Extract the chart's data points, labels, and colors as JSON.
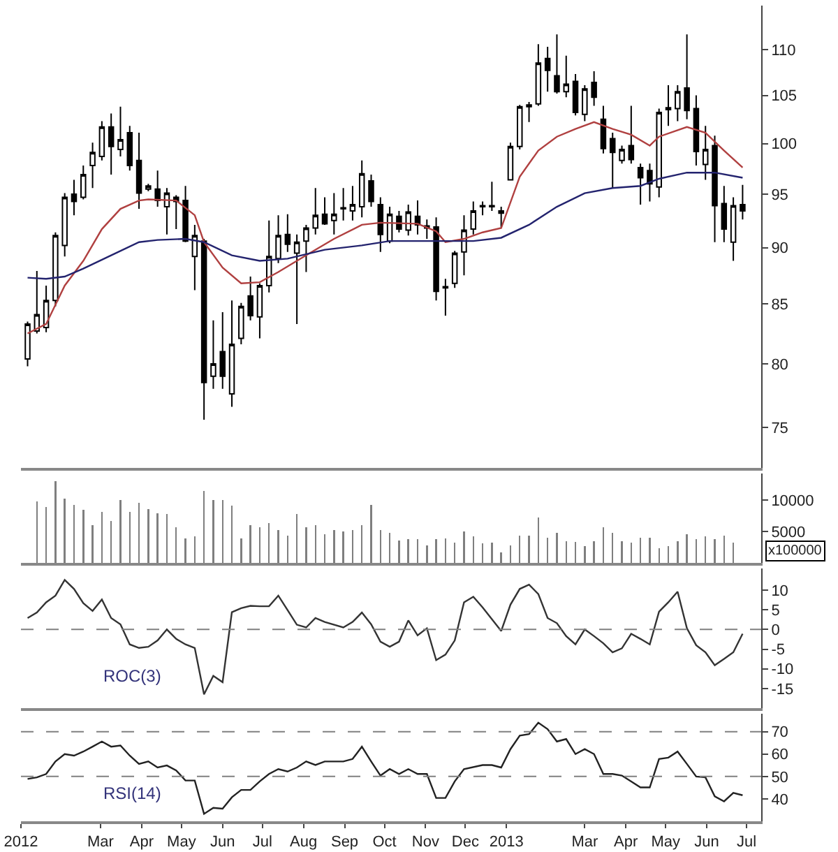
{
  "chart_data": [
    {
      "type": "candlestick",
      "log": true,
      "tick_labels": "y",
      "xlim": [
        "2012-01-01",
        "2013-07-12"
      ],
      "ylim": [
        72,
        115
      ],
      "yticks": [
        75,
        80,
        85,
        90,
        95,
        100,
        105,
        110
      ],
      "x": [
        "2012-01-06",
        "2012-01-13",
        "2012-01-20",
        "2012-01-27",
        "2012-02-03",
        "2012-02-10",
        "2012-02-17",
        "2012-02-24",
        "2012-03-02",
        "2012-03-09",
        "2012-03-16",
        "2012-03-23",
        "2012-03-30",
        "2012-04-06",
        "2012-04-13",
        "2012-04-20",
        "2012-04-27",
        "2012-05-04",
        "2012-05-11",
        "2012-05-18",
        "2012-05-25",
        "2012-06-01",
        "2012-06-08",
        "2012-06-15",
        "2012-06-22",
        "2012-06-29",
        "2012-07-06",
        "2012-07-13",
        "2012-07-20",
        "2012-07-27",
        "2012-08-03",
        "2012-08-10",
        "2012-08-17",
        "2012-08-24",
        "2012-08-31",
        "2012-09-07",
        "2012-09-14",
        "2012-09-21",
        "2012-09-28",
        "2012-10-05",
        "2012-10-12",
        "2012-10-19",
        "2012-10-26",
        "2012-11-02",
        "2012-11-09",
        "2012-11-16",
        "2012-11-23",
        "2012-11-30",
        "2012-12-07",
        "2012-12-14",
        "2012-12-21",
        "2012-12-28",
        "2013-01-04",
        "2013-01-11",
        "2013-01-18",
        "2013-01-25",
        "2013-02-01",
        "2013-02-08",
        "2013-02-15",
        "2013-02-22",
        "2013-03-01",
        "2013-03-08",
        "2013-03-15",
        "2013-03-22",
        "2013-03-29",
        "2013-04-05",
        "2013-04-12",
        "2013-04-19",
        "2013-04-26",
        "2013-05-03",
        "2013-05-10",
        "2013-05-17",
        "2013-05-24",
        "2013-05-31",
        "2013-06-07",
        "2013-06-14",
        "2013-06-21",
        "2013-06-28"
      ],
      "ohlc": [
        [
          80.4,
          83.5,
          79.8,
          83.3
        ],
        [
          82.7,
          87.9,
          82.5,
          84.1
        ],
        [
          83.0,
          86.6,
          82.6,
          85.3
        ],
        [
          85.3,
          91.4,
          84.8,
          91.1
        ],
        [
          90.2,
          95.1,
          89.2,
          94.7
        ],
        [
          95.0,
          96.4,
          93.0,
          94.3
        ],
        [
          94.7,
          97.8,
          94.5,
          96.9
        ],
        [
          97.8,
          100.1,
          95.6,
          99.1
        ],
        [
          98.7,
          102.3,
          98.3,
          101.7
        ],
        [
          101.7,
          103.1,
          96.9,
          99.7
        ],
        [
          99.4,
          103.8,
          98.7,
          100.4
        ],
        [
          101.1,
          101.8,
          97.3,
          97.8
        ],
        [
          98.3,
          101.1,
          93.6,
          95.1
        ],
        [
          95.5,
          96.0,
          95.3,
          95.8
        ],
        [
          95.5,
          97.3,
          93.8,
          94.4
        ],
        [
          93.8,
          95.6,
          91.2,
          95.1
        ],
        [
          94.7,
          94.9,
          91.7,
          94.3
        ],
        [
          94.4,
          95.8,
          90.5,
          90.6
        ],
        [
          89.2,
          92.1,
          86.2,
          91.1
        ],
        [
          90.6,
          90.8,
          75.6,
          78.5
        ],
        [
          79.0,
          83.6,
          78.0,
          80.0
        ],
        [
          81.0,
          84.3,
          78.0,
          79.0
        ],
        [
          77.6,
          85.3,
          76.6,
          81.6
        ],
        [
          82.1,
          85.1,
          81.6,
          84.8
        ],
        [
          85.7,
          87.4,
          83.6,
          84.0
        ],
        [
          83.9,
          86.8,
          82.1,
          86.6
        ],
        [
          86.6,
          92.5,
          86.0,
          89.2
        ],
        [
          89.0,
          93.0,
          88.6,
          91.1
        ],
        [
          91.2,
          93.1,
          89.6,
          90.3
        ],
        [
          89.5,
          91.2,
          83.3,
          90.5
        ],
        [
          90.6,
          92.1,
          87.8,
          91.8
        ],
        [
          91.8,
          95.6,
          91.2,
          93.0
        ],
        [
          93.1,
          94.7,
          92.1,
          92.2
        ],
        [
          92.5,
          95.1,
          91.2,
          93.1
        ],
        [
          93.6,
          95.6,
          92.5,
          93.7
        ],
        [
          93.4,
          95.8,
          92.5,
          94.0
        ],
        [
          93.8,
          98.3,
          92.8,
          97.0
        ],
        [
          96.3,
          96.9,
          93.8,
          94.3
        ],
        [
          94.0,
          94.7,
          89.6,
          91.2
        ],
        [
          90.6,
          93.8,
          90.4,
          93.1
        ],
        [
          92.9,
          93.4,
          91.4,
          91.7
        ],
        [
          91.6,
          94.0,
          91.1,
          93.3
        ],
        [
          92.9,
          94.4,
          91.2,
          92.1
        ],
        [
          91.8,
          92.6,
          90.8,
          92.0
        ],
        [
          91.9,
          92.8,
          85.3,
          86.1
        ],
        [
          86.4,
          87.2,
          84.0,
          86.5
        ],
        [
          86.8,
          89.7,
          86.4,
          89.5
        ],
        [
          89.6,
          93.0,
          87.5,
          91.6
        ],
        [
          91.7,
          94.3,
          91.2,
          93.4
        ],
        [
          93.8,
          94.3,
          93.0,
          93.9
        ],
        [
          93.9,
          96.2,
          93.4,
          93.8
        ],
        [
          93.4,
          93.8,
          91.8,
          93.2
        ],
        [
          96.4,
          100.1,
          96.4,
          99.7
        ],
        [
          99.7,
          104.0,
          99.4,
          103.8
        ],
        [
          103.8,
          104.3,
          102.2,
          104.0
        ],
        [
          104.1,
          110.6,
          103.9,
          108.5
        ],
        [
          109.0,
          110.3,
          105.4,
          107.7
        ],
        [
          107.1,
          111.7,
          105.2,
          105.4
        ],
        [
          105.4,
          109.3,
          104.8,
          106.2
        ],
        [
          106.5,
          107.3,
          102.9,
          103.2
        ],
        [
          103.0,
          106.1,
          102.3,
          105.7
        ],
        [
          106.4,
          107.6,
          103.9,
          104.8
        ],
        [
          102.5,
          103.9,
          99.0,
          99.5
        ],
        [
          100.5,
          101.1,
          95.6,
          99.1
        ],
        [
          98.3,
          99.8,
          98.0,
          99.4
        ],
        [
          99.8,
          103.9,
          98.0,
          98.4
        ],
        [
          97.6,
          98.0,
          94.0,
          96.6
        ],
        [
          97.3,
          98.0,
          94.3,
          96.0
        ],
        [
          95.7,
          103.6,
          94.7,
          103.2
        ],
        [
          103.5,
          106.1,
          101.8,
          103.7
        ],
        [
          103.6,
          106.1,
          102.3,
          105.4
        ],
        [
          105.8,
          111.7,
          102.5,
          103.4
        ],
        [
          103.6,
          105.0,
          97.8,
          99.2
        ],
        [
          97.9,
          101.8,
          96.4,
          99.4
        ],
        [
          99.8,
          100.8,
          90.5,
          93.9
        ],
        [
          94.1,
          95.8,
          90.5,
          91.7
        ],
        [
          90.5,
          94.7,
          88.8,
          93.9
        ],
        [
          94.0,
          95.9,
          92.6,
          93.4
        ]
      ],
      "series": [
        {
          "type": "line",
          "color": "#b04040",
          "x": [
            "2012-01-06",
            "2012-01-20",
            "2012-02-03",
            "2012-02-17",
            "2012-03-02",
            "2012-03-16",
            "2012-03-30",
            "2012-04-06",
            "2012-04-27",
            "2012-05-11",
            "2012-05-18",
            "2012-06-01",
            "2012-06-15",
            "2012-06-29",
            "2012-07-13",
            "2012-08-03",
            "2012-08-24",
            "2012-09-14",
            "2012-09-28",
            "2012-10-26",
            "2012-11-09",
            "2012-11-16",
            "2012-11-30",
            "2012-12-14",
            "2012-12-28",
            "2013-01-11",
            "2013-01-25",
            "2013-02-08",
            "2013-02-22",
            "2013-03-08",
            "2013-03-22",
            "2013-04-05",
            "2013-04-19",
            "2013-04-26",
            "2013-05-17",
            "2013-05-31",
            "2013-06-14",
            "2013-06-28"
          ],
          "values": [
            82.5,
            83.3,
            86.6,
            88.8,
            91.7,
            93.6,
            94.4,
            94.5,
            94.4,
            93.0,
            90.5,
            88.2,
            86.8,
            86.9,
            87.8,
            89.3,
            90.8,
            92.1,
            92.3,
            92.2,
            91.5,
            90.5,
            90.8,
            91.4,
            91.8,
            96.7,
            99.3,
            100.7,
            101.5,
            102.2,
            101.5,
            100.9,
            99.8,
            100.7,
            101.7,
            101.1,
            99.3,
            97.6
          ]
        },
        {
          "type": "line",
          "color": "#23236e",
          "x": [
            "2012-01-06",
            "2012-01-20",
            "2012-02-03",
            "2012-02-17",
            "2012-03-09",
            "2012-03-30",
            "2012-04-13",
            "2012-05-04",
            "2012-05-18",
            "2012-06-08",
            "2012-06-29",
            "2012-07-20",
            "2012-08-17",
            "2012-09-14",
            "2012-10-05",
            "2012-11-09",
            "2012-12-07",
            "2012-12-28",
            "2013-01-18",
            "2013-02-08",
            "2013-03-01",
            "2013-03-22",
            "2013-04-12",
            "2013-04-26",
            "2013-05-17",
            "2013-06-07",
            "2013-06-28"
          ],
          "values": [
            87.3,
            87.2,
            87.4,
            88.1,
            89.3,
            90.5,
            90.7,
            90.8,
            90.5,
            89.3,
            88.8,
            89.0,
            89.8,
            90.2,
            90.6,
            90.6,
            90.6,
            90.9,
            92.1,
            93.8,
            95.1,
            95.6,
            95.8,
            96.5,
            97.1,
            97.1,
            96.6
          ]
        }
      ]
    },
    {
      "type": "bar",
      "tick_labels": "y",
      "color": "#7f7f7f",
      "xlim": [
        "2012-01-01",
        "2013-07-12"
      ],
      "ylim": [
        0,
        14300
      ],
      "yticks": [
        5000,
        10000
      ],
      "annotations": [
        "x100000"
      ],
      "x": [
        "2012-01-13",
        "2012-01-20",
        "2012-01-27",
        "2012-02-03",
        "2012-02-10",
        "2012-02-17",
        "2012-02-24",
        "2012-03-02",
        "2012-03-09",
        "2012-03-16",
        "2012-03-23",
        "2012-03-30",
        "2012-04-06",
        "2012-04-13",
        "2012-04-20",
        "2012-04-27",
        "2012-05-04",
        "2012-05-11",
        "2012-05-18",
        "2012-05-25",
        "2012-06-01",
        "2012-06-08",
        "2012-06-15",
        "2012-06-22",
        "2012-06-29",
        "2012-07-06",
        "2012-07-13",
        "2012-07-20",
        "2012-07-27",
        "2012-08-03",
        "2012-08-10",
        "2012-08-17",
        "2012-08-24",
        "2012-08-31",
        "2012-09-07",
        "2012-09-14",
        "2012-09-21",
        "2012-09-28",
        "2012-10-05",
        "2012-10-12",
        "2012-10-19",
        "2012-10-26",
        "2012-11-02",
        "2012-11-09",
        "2012-11-16",
        "2012-11-23",
        "2012-11-30",
        "2012-12-07",
        "2012-12-14",
        "2012-12-21",
        "2012-12-28",
        "2013-01-04",
        "2013-01-11",
        "2013-01-18",
        "2013-01-25",
        "2013-02-01",
        "2013-02-08",
        "2013-02-15",
        "2013-02-22",
        "2013-03-01",
        "2013-03-08",
        "2013-03-15",
        "2013-03-22",
        "2013-03-29",
        "2013-04-05",
        "2013-04-12",
        "2013-04-19",
        "2013-04-26",
        "2013-05-03",
        "2013-05-10",
        "2013-05-17",
        "2013-05-24",
        "2013-05-31",
        "2013-06-07",
        "2013-06-14",
        "2013-06-21"
      ],
      "values": [
        9800,
        8900,
        13100,
        10300,
        9300,
        8500,
        6000,
        8200,
        6700,
        10000,
        8200,
        9600,
        8600,
        7900,
        7800,
        5700,
        3900,
        4300,
        11500,
        10000,
        10000,
        9200,
        3900,
        6000,
        5700,
        6400,
        5300,
        4400,
        7800,
        5700,
        6000,
        4600,
        5300,
        5000,
        5300,
        6000,
        9300,
        5300,
        4800,
        3600,
        3800,
        3800,
        2800,
        3800,
        3900,
        3200,
        5000,
        4200,
        3100,
        3200,
        1700,
        2800,
        4400,
        4400,
        7300,
        4000,
        4800,
        3500,
        3300,
        2700,
        3500,
        5700,
        4800,
        3500,
        3200,
        4000,
        4000,
        2300,
        2700,
        3500,
        4600,
        3800,
        4200,
        3800,
        4400,
        3200
      ]
    },
    {
      "type": "line",
      "tick_labels": "y",
      "xlim": [
        "2012-01-01",
        "2013-07-12"
      ],
      "ylim": [
        -20,
        15.5
      ],
      "yticks": [
        -15,
        -10,
        -5,
        0,
        5,
        10
      ],
      "ref_lines": [
        {
          "axis": "y",
          "value": 0,
          "color": "#808080",
          "line_style": "dashed"
        }
      ],
      "series": [
        {
          "name": "ROC(3)",
          "color": "#333333",
          "x": [
            "2012-01-06",
            "2012-01-13",
            "2012-01-20",
            "2012-01-27",
            "2012-02-03",
            "2012-02-10",
            "2012-02-17",
            "2012-02-24",
            "2012-03-02",
            "2012-03-09",
            "2012-03-16",
            "2012-03-23",
            "2012-03-30",
            "2012-04-06",
            "2012-04-13",
            "2012-04-20",
            "2012-04-27",
            "2012-05-04",
            "2012-05-11",
            "2012-05-18",
            "2012-05-25",
            "2012-06-01",
            "2012-06-08",
            "2012-06-15",
            "2012-06-22",
            "2012-06-29",
            "2012-07-06",
            "2012-07-13",
            "2012-07-20",
            "2012-07-27",
            "2012-08-03",
            "2012-08-10",
            "2012-08-17",
            "2012-08-31",
            "2012-09-07",
            "2012-09-14",
            "2012-09-21",
            "2012-09-28",
            "2012-10-05",
            "2012-10-12",
            "2012-10-19",
            "2012-10-26",
            "2012-11-02",
            "2012-11-09",
            "2012-11-16",
            "2012-11-23",
            "2012-11-30",
            "2012-12-07",
            "2012-12-14",
            "2012-12-28",
            "2013-01-04",
            "2013-01-11",
            "2013-01-18",
            "2013-01-25",
            "2013-02-01",
            "2013-02-08",
            "2013-02-15",
            "2013-02-22",
            "2013-03-01",
            "2013-03-08",
            "2013-03-15",
            "2013-03-22",
            "2013-03-29",
            "2013-04-05",
            "2013-04-12",
            "2013-04-19",
            "2013-04-26",
            "2013-05-03",
            "2013-05-10",
            "2013-05-17",
            "2013-05-24",
            "2013-05-31",
            "2013-06-07",
            "2013-06-14",
            "2013-06-21",
            "2013-06-28"
          ],
          "values": [
            2.9,
            4.3,
            6.9,
            8.6,
            12.6,
            10.3,
            6.7,
            4.7,
            7.6,
            2.9,
            1.3,
            -3.8,
            -4.7,
            -4.4,
            -2.8,
            0,
            -2.4,
            -3.8,
            -4.7,
            -16.5,
            -11.8,
            -13.4,
            4.4,
            5.4,
            6.0,
            5.9,
            5.9,
            8.6,
            4.9,
            1.2,
            0.5,
            2.9,
            1.9,
            0.5,
            1.9,
            4.3,
            1.3,
            -3.1,
            -4.4,
            -3.1,
            2.3,
            -1.5,
            0.3,
            -7.8,
            -6.4,
            -2.8,
            6.9,
            8.3,
            5.6,
            -0.4,
            6.3,
            10.3,
            11.4,
            9.0,
            2.9,
            1.6,
            -1.7,
            -3.8,
            0,
            -1.7,
            -3.5,
            -5.8,
            -4.8,
            -1.1,
            -2.4,
            -3.8,
            4.5,
            6.9,
            9.6,
            0.3,
            -4.0,
            -5.8,
            -9.1,
            -7.5,
            -5.8,
            -1.1
          ]
        }
      ]
    },
    {
      "type": "line",
      "xlim": [
        "2012-01-01",
        "2013-07-12"
      ],
      "ylim": [
        30,
        78
      ],
      "yticks": [
        40,
        50,
        60,
        70
      ],
      "xticks": [
        {
          "value": "2012-01-01",
          "label": "2012"
        },
        {
          "value": "2012-03-01",
          "label": "Mar"
        },
        {
          "value": "2012-04-01",
          "label": "Apr"
        },
        {
          "value": "2012-05-01",
          "label": "May"
        },
        {
          "value": "2012-06-01",
          "label": "Jun"
        },
        {
          "value": "2012-07-01",
          "label": "Jul"
        },
        {
          "value": "2012-08-01",
          "label": "Aug"
        },
        {
          "value": "2012-09-01",
          "label": "Sep"
        },
        {
          "value": "2012-10-01",
          "label": "Oct"
        },
        {
          "value": "2012-11-01",
          "label": "Nov"
        },
        {
          "value": "2012-12-01",
          "label": "Dec"
        },
        {
          "value": "2013-01-01",
          "label": "2013"
        },
        {
          "value": "2013-03-01",
          "label": "Mar"
        },
        {
          "value": "2013-04-01",
          "label": "Apr"
        },
        {
          "value": "2013-05-01",
          "label": "May"
        },
        {
          "value": "2013-06-01",
          "label": "Jun"
        },
        {
          "value": "2013-07-01",
          "label": "Jul"
        }
      ],
      "ref_lines": [
        {
          "axis": "y",
          "value": 70,
          "color": "#808080",
          "line_style": "dashed"
        },
        {
          "axis": "y",
          "value": 50,
          "color": "#808080",
          "line_style": "dashed"
        }
      ],
      "series": [
        {
          "name": "RSI(14)",
          "color": "#222222",
          "x": [
            "2012-01-06",
            "2012-01-13",
            "2012-01-20",
            "2012-01-27",
            "2012-02-03",
            "2012-02-10",
            "2012-02-17",
            "2012-02-24",
            "2012-03-02",
            "2012-03-09",
            "2012-03-16",
            "2012-03-23",
            "2012-03-30",
            "2012-04-06",
            "2012-04-13",
            "2012-04-20",
            "2012-04-27",
            "2012-05-04",
            "2012-05-11",
            "2012-05-18",
            "2012-05-25",
            "2012-06-01",
            "2012-06-08",
            "2012-06-15",
            "2012-06-22",
            "2012-06-29",
            "2012-07-06",
            "2012-07-13",
            "2012-07-20",
            "2012-07-27",
            "2012-08-03",
            "2012-08-10",
            "2012-08-17",
            "2012-08-31",
            "2012-09-07",
            "2012-09-14",
            "2012-09-21",
            "2012-09-28",
            "2012-10-05",
            "2012-10-12",
            "2012-10-19",
            "2012-10-26",
            "2012-11-02",
            "2012-11-09",
            "2012-11-16",
            "2012-11-23",
            "2012-11-30",
            "2012-12-14",
            "2012-12-21",
            "2012-12-28",
            "2013-01-04",
            "2013-01-11",
            "2013-01-18",
            "2013-01-25",
            "2013-02-01",
            "2013-02-08",
            "2013-02-15",
            "2013-02-22",
            "2013-03-01",
            "2013-03-08",
            "2013-03-15",
            "2013-03-22",
            "2013-03-29",
            "2013-04-05",
            "2013-04-12",
            "2013-04-19",
            "2013-04-26",
            "2013-05-03",
            "2013-05-10",
            "2013-05-17",
            "2013-05-24",
            "2013-05-31",
            "2013-06-07",
            "2013-06-14",
            "2013-06-21",
            "2013-06-28"
          ],
          "values": [
            48.9,
            49.6,
            51.1,
            56.7,
            60.0,
            59.3,
            61.1,
            63.3,
            65.6,
            63.3,
            63.8,
            59.3,
            55.6,
            56.7,
            54.0,
            54.9,
            52.7,
            48.2,
            48.2,
            33.3,
            36.0,
            35.6,
            40.7,
            44.0,
            44.0,
            47.8,
            51.1,
            53.3,
            52.2,
            54.0,
            56.7,
            55.1,
            56.7,
            56.7,
            57.8,
            63.3,
            56.7,
            50.4,
            53.3,
            51.1,
            53.3,
            51.1,
            51.1,
            40.4,
            40.4,
            47.8,
            53.3,
            55.1,
            55.1,
            54.0,
            62.2,
            68.2,
            68.9,
            74.0,
            71.1,
            65.6,
            66.7,
            60.0,
            62.2,
            60.0,
            51.1,
            51.1,
            50.4,
            47.8,
            45.1,
            45.1,
            57.8,
            58.4,
            61.1,
            55.6,
            50.0,
            49.6,
            41.1,
            38.9,
            42.7,
            41.6
          ]
        }
      ]
    }
  ]
}
